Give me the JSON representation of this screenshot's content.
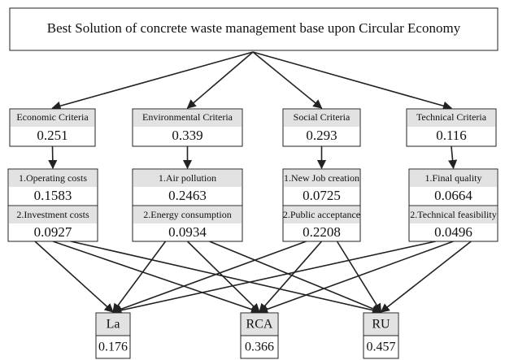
{
  "title": "Best Solution of concrete waste management base upon Circular Economy",
  "criteria": [
    {
      "label": "Economic Criteria",
      "weight": 0.251,
      "subcriteria": [
        {
          "label": "1.Operating costs",
          "weight": 0.1583
        },
        {
          "label": "2.Investment costs",
          "weight": 0.0927
        }
      ]
    },
    {
      "label": "Environmental Criteria",
      "weight": 0.339,
      "subcriteria": [
        {
          "label": "1.Air pollution",
          "weight": 0.2463
        },
        {
          "label": "2.Energy consumption",
          "weight": 0.0934
        }
      ]
    },
    {
      "label": "Social Criteria",
      "weight": 0.293,
      "subcriteria": [
        {
          "label": "1.New Job creation",
          "weight": 0.0725
        },
        {
          "label": "2.Public acceptance",
          "weight": 0.2208
        }
      ]
    },
    {
      "label": "Technical Criteria",
      "weight": 0.116,
      "subcriteria": [
        {
          "label": "1.Final quality",
          "weight": 0.0664
        },
        {
          "label": "2.Technical feasibility",
          "weight": 0.0496
        }
      ]
    }
  ],
  "alternatives": [
    {
      "label": "La",
      "value": 0.176
    },
    {
      "label": "RCA",
      "value": 0.366
    },
    {
      "label": "RU",
      "value": 0.457
    }
  ]
}
